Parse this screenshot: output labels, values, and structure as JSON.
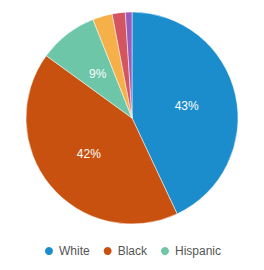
{
  "chart_data": {
    "type": "pie",
    "categories": [
      "White",
      "Black",
      "Hispanic",
      null,
      null,
      null
    ],
    "values": [
      43,
      42,
      9,
      3,
      2,
      1
    ],
    "value_labels": [
      "43%",
      "42%",
      "9%",
      null,
      null,
      null
    ],
    "colors": [
      "#1b8dcd",
      "#c8510f",
      "#6cc6a7",
      "#f5b04a",
      "#d2555f",
      "#9b5bb8"
    ],
    "legend": "bottom"
  }
}
